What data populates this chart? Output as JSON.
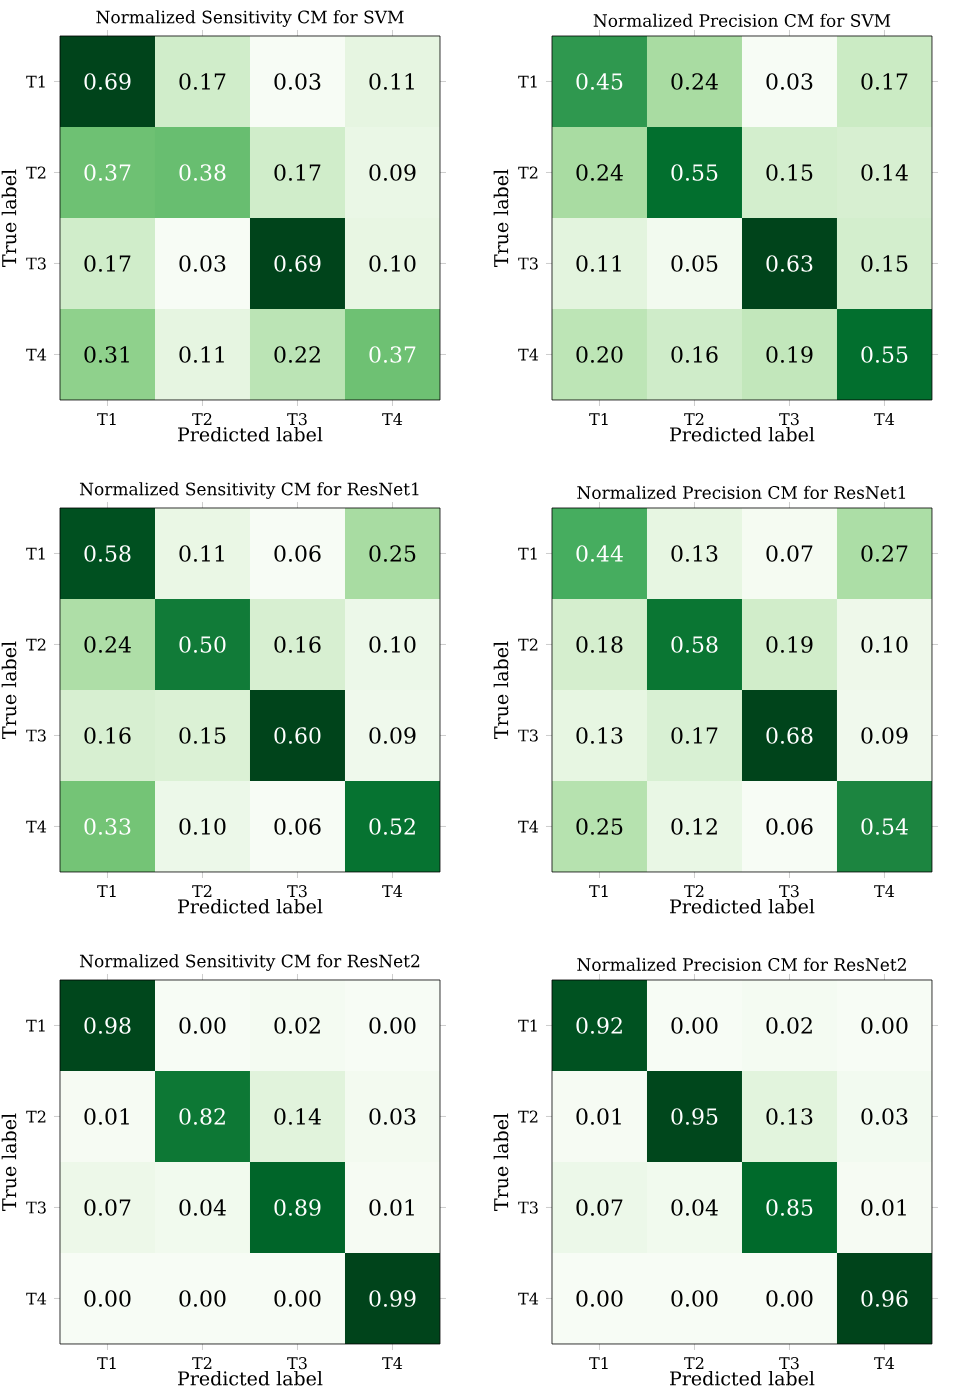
{
  "chart_data": [
    {
      "type": "heatmap",
      "title": "Normalized Sensitivity CM for SVM",
      "xlabel": "Predicted label",
      "ylabel": "True label",
      "categories": [
        "T1",
        "T2",
        "T3",
        "T4"
      ],
      "y_categories": [
        "T1",
        "T2",
        "T3",
        "T4"
      ],
      "cells": [
        [
          0.69,
          0.17,
          0.03,
          0.11
        ],
        [
          0.37,
          0.38,
          0.17,
          0.09
        ],
        [
          0.17,
          0.03,
          0.69,
          0.1
        ],
        [
          0.31,
          0.11,
          0.22,
          0.37
        ]
      ],
      "cell_labels": [
        [
          "0.69",
          "0.17",
          "0.03",
          "0.11"
        ],
        [
          "0.37",
          "0.38",
          "0.17",
          "0.09"
        ],
        [
          "0.17",
          "0.03",
          "0.69",
          "0.10"
        ],
        [
          "0.31",
          "0.11",
          "0.22",
          "0.37"
        ]
      ]
    },
    {
      "type": "heatmap",
      "title": "Normalized Precision CM for SVM",
      "xlabel": "Predicted label",
      "ylabel": "True label",
      "categories": [
        "T1",
        "T2",
        "T3",
        "T4"
      ],
      "y_categories": [
        "T1",
        "T2",
        "T3",
        "T4"
      ],
      "cells": [
        [
          0.45,
          0.24,
          0.03,
          0.17
        ],
        [
          0.24,
          0.55,
          0.15,
          0.14
        ],
        [
          0.11,
          0.05,
          0.63,
          0.15
        ],
        [
          0.2,
          0.16,
          0.19,
          0.55
        ]
      ],
      "cell_labels": [
        [
          "0.45",
          "0.24",
          "0.03",
          "0.17"
        ],
        [
          "0.24",
          "0.55",
          "0.15",
          "0.14"
        ],
        [
          "0.11",
          "0.05",
          "0.63",
          "0.15"
        ],
        [
          "0.20",
          "0.16",
          "0.19",
          "0.55"
        ]
      ]
    },
    {
      "type": "heatmap",
      "title": "Normalized Sensitivity CM for ResNet1",
      "xlabel": "Predicted label",
      "ylabel": "True label",
      "categories": [
        "T1",
        "T2",
        "T3",
        "T4"
      ],
      "y_categories": [
        "T1",
        "T2",
        "T3",
        "T4"
      ],
      "cells": [
        [
          0.58,
          0.11,
          0.06,
          0.25
        ],
        [
          0.24,
          0.5,
          0.16,
          0.1
        ],
        [
          0.16,
          0.15,
          0.6,
          0.09
        ],
        [
          0.33,
          0.1,
          0.06,
          0.52
        ]
      ],
      "cell_labels": [
        [
          "0.58",
          "0.11",
          "0.06",
          "0.25"
        ],
        [
          "0.24",
          "0.50",
          "0.16",
          "0.10"
        ],
        [
          "0.16",
          "0.15",
          "0.60",
          "0.09"
        ],
        [
          "0.33",
          "0.10",
          "0.06",
          "0.52"
        ]
      ]
    },
    {
      "type": "heatmap",
      "title": "Normalized Precision CM for ResNet1",
      "xlabel": "Predicted label",
      "ylabel": "True label",
      "categories": [
        "T1",
        "T2",
        "T3",
        "T4"
      ],
      "y_categories": [
        "T1",
        "T2",
        "T3",
        "T4"
      ],
      "cells": [
        [
          0.44,
          0.13,
          0.07,
          0.27
        ],
        [
          0.18,
          0.58,
          0.19,
          0.1
        ],
        [
          0.13,
          0.17,
          0.68,
          0.09
        ],
        [
          0.25,
          0.12,
          0.06,
          0.54
        ]
      ],
      "cell_labels": [
        [
          "0.44",
          "0.13",
          "0.07",
          "0.27"
        ],
        [
          "0.18",
          "0.58",
          "0.19",
          "0.10"
        ],
        [
          "0.13",
          "0.17",
          "0.68",
          "0.09"
        ],
        [
          "0.25",
          "0.12",
          "0.06",
          "0.54"
        ]
      ]
    },
    {
      "type": "heatmap",
      "title": "Normalized Sensitivity CM for ResNet2",
      "xlabel": "Predicted label",
      "ylabel": "True label",
      "categories": [
        "T1",
        "T2",
        "T3",
        "T4"
      ],
      "y_categories": [
        "T1",
        "T2",
        "T3",
        "T4"
      ],
      "cells": [
        [
          0.98,
          0.0,
          0.02,
          0.0
        ],
        [
          0.01,
          0.82,
          0.14,
          0.03
        ],
        [
          0.07,
          0.04,
          0.89,
          0.01
        ],
        [
          0.0,
          0.0,
          0.0,
          0.99
        ]
      ],
      "cell_labels": [
        [
          "0.98",
          "0.00",
          "0.02",
          "0.00"
        ],
        [
          "0.01",
          "0.82",
          "0.14",
          "0.03"
        ],
        [
          "0.07",
          "0.04",
          "0.89",
          "0.01"
        ],
        [
          "0.00",
          "0.00",
          "0.00",
          "0.99"
        ]
      ]
    },
    {
      "type": "heatmap",
      "title": "Normalized Precision CM for ResNet2",
      "xlabel": "Predicted label",
      "ylabel": "True label",
      "categories": [
        "T1",
        "T2",
        "T3",
        "T4"
      ],
      "y_categories": [
        "T1",
        "T2",
        "T3",
        "T4"
      ],
      "cells": [
        [
          0.92,
          0.0,
          0.02,
          0.0
        ],
        [
          0.01,
          0.95,
          0.13,
          0.03
        ],
        [
          0.07,
          0.04,
          0.85,
          0.01
        ],
        [
          0.0,
          0.0,
          0.0,
          0.96
        ]
      ],
      "cell_labels": [
        [
          "0.92",
          "0.00",
          "0.02",
          "0.00"
        ],
        [
          "0.01",
          "0.95",
          "0.13",
          "0.03"
        ],
        [
          "0.07",
          "0.04",
          "0.85",
          "0.01"
        ],
        [
          "0.00",
          "0.00",
          "0.00",
          "0.96"
        ]
      ]
    }
  ]
}
